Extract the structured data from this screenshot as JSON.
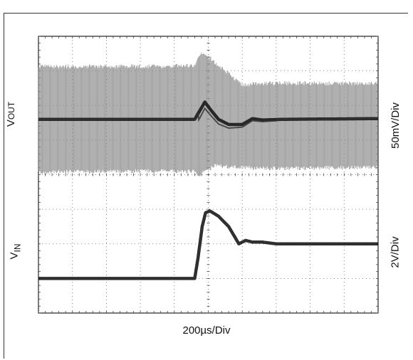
{
  "chart_data": {
    "type": "line",
    "x_scale_label": "200µs/Div",
    "x_divisions": 10,
    "y_divisions": 8,
    "grid": true,
    "grid_style": "dotted",
    "channels": [
      {
        "name_main": "V",
        "name_sub": "OUT",
        "scale_label": "50mV/Div",
        "trace_color": "#1a1a1a",
        "ripple_color": "#8a8a8a",
        "baseline_div": 5.6,
        "points": [
          [
            0,
            5.6
          ],
          [
            4.6,
            5.6
          ],
          [
            4.75,
            5.85
          ],
          [
            4.9,
            6.1
          ],
          [
            5.05,
            5.9
          ],
          [
            5.3,
            5.6
          ],
          [
            5.6,
            5.45
          ],
          [
            6.0,
            5.45
          ],
          [
            6.3,
            5.62
          ],
          [
            6.6,
            5.58
          ],
          [
            7.2,
            5.6
          ],
          [
            10,
            5.62
          ]
        ],
        "ripple": [
          [
            0,
            4.02,
            7.18
          ],
          [
            4.6,
            4.05,
            7.2
          ],
          [
            4.75,
            3.9,
            7.5
          ],
          [
            4.85,
            4.0,
            7.6
          ],
          [
            5.2,
            4.2,
            7.3
          ],
          [
            6.0,
            4.15,
            6.65
          ],
          [
            6.4,
            4.12,
            6.7
          ],
          [
            10,
            4.15,
            6.7
          ]
        ]
      },
      {
        "name_main": "V",
        "name_sub": "IN",
        "scale_label": "2V/Div",
        "trace_color": "#1a1a1a",
        "points": [
          [
            0,
            1.0
          ],
          [
            4.6,
            1.0
          ],
          [
            4.7,
            1.6
          ],
          [
            4.82,
            2.5
          ],
          [
            4.92,
            2.9
          ],
          [
            5.05,
            2.95
          ],
          [
            5.3,
            2.8
          ],
          [
            5.6,
            2.5
          ],
          [
            5.9,
            2.0
          ],
          [
            6.1,
            2.1
          ],
          [
            6.3,
            2.05
          ],
          [
            6.6,
            2.05
          ],
          [
            7.0,
            2.0
          ],
          [
            10,
            2.0
          ]
        ]
      }
    ]
  }
}
